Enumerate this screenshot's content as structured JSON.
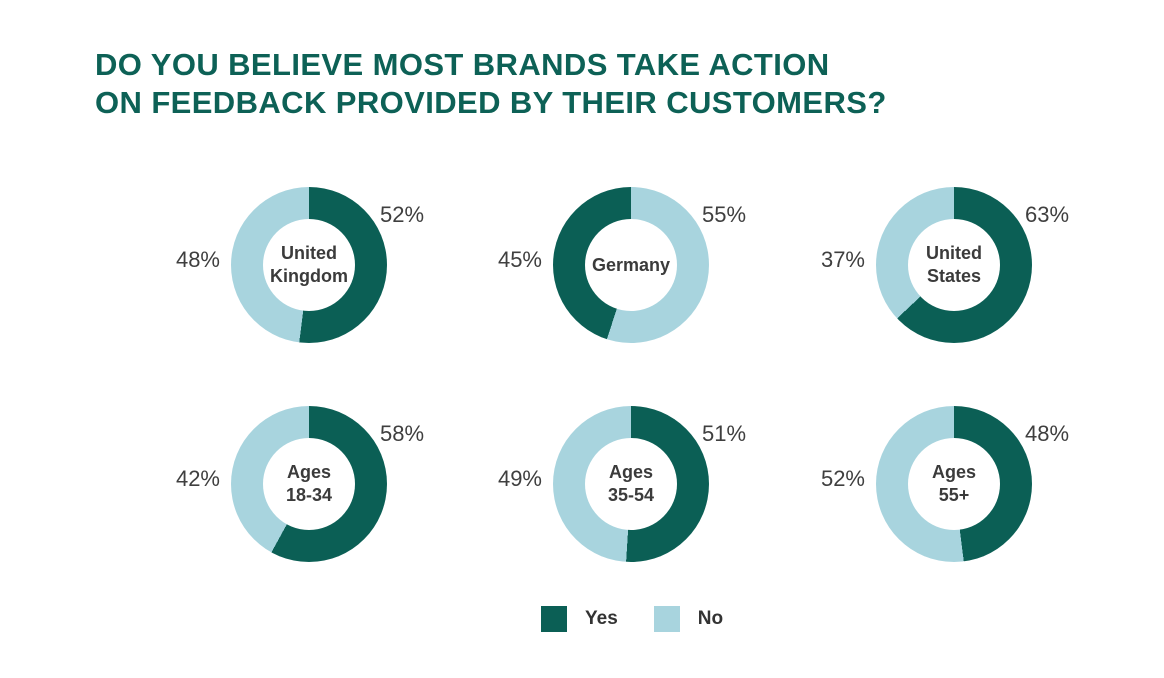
{
  "title": {
    "line1": "DO YOU BELIEVE MOST BRANDS TAKE ACTION",
    "line2": "ON FEEDBACK PROVIDED BY THEIR CUSTOMERS?"
  },
  "colors": {
    "title": "#0D6156",
    "yes": "#0B5F55",
    "no": "#A8D4DE",
    "text": "#3D3D3D",
    "background": "#FFFFFF"
  },
  "legend": {
    "yes_label": "Yes",
    "no_label": "No"
  },
  "chart_data": {
    "type": "pie",
    "variant": "donut-grid",
    "title": "DO YOU BELIEVE MOST BRANDS TAKE ACTION ON FEEDBACK PROVIDED BY THEIR CUSTOMERS?",
    "legend": [
      "Yes",
      "No"
    ],
    "legend_position": "bottom-center",
    "series_colors": {
      "yes": "#0B5F55",
      "no": "#A8D4DE"
    },
    "donuts": [
      {
        "category": "United Kingdom",
        "label_line1": "United",
        "label_line2": "Kingdom",
        "yes_pct": 52,
        "no_pct": 48,
        "first_segment_clockwise": "yes",
        "right_label": "52%",
        "left_label": "48%"
      },
      {
        "category": "Germany",
        "label_line1": "Germany",
        "label_line2": "",
        "yes_pct": 45,
        "no_pct": 55,
        "first_segment_clockwise": "no",
        "right_label": "55%",
        "left_label": "45%"
      },
      {
        "category": "United States",
        "label_line1": "United",
        "label_line2": "States",
        "yes_pct": 63,
        "no_pct": 37,
        "first_segment_clockwise": "yes",
        "right_label": "63%",
        "left_label": "37%"
      },
      {
        "category": "Ages 18-34",
        "label_line1": "Ages",
        "label_line2": "18-34",
        "yes_pct": 58,
        "no_pct": 42,
        "first_segment_clockwise": "yes",
        "right_label": "58%",
        "left_label": "42%"
      },
      {
        "category": "Ages 35-54",
        "label_line1": "Ages",
        "label_line2": "35-54",
        "yes_pct": 51,
        "no_pct": 49,
        "first_segment_clockwise": "yes",
        "right_label": "51%",
        "left_label": "49%"
      },
      {
        "category": "Ages 55+",
        "label_line1": "Ages",
        "label_line2": "55+",
        "yes_pct": 48,
        "no_pct": 52,
        "first_segment_clockwise": "yes",
        "right_label": "48%",
        "left_label": "52%"
      }
    ]
  }
}
